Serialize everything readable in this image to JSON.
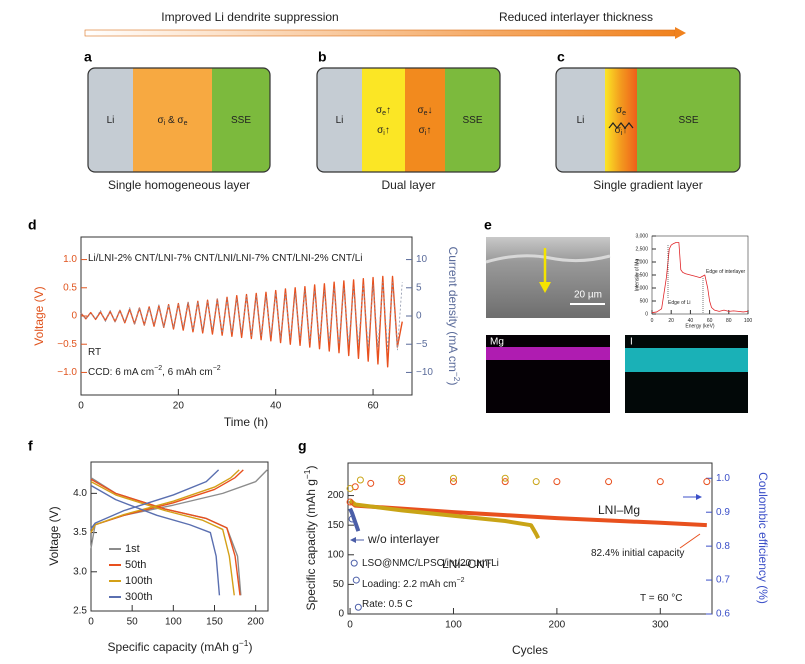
{
  "header": {
    "left": "Improved Li dendrite suppression",
    "right": "Reduced interlayer thickness"
  },
  "panel_labels": [
    "a",
    "b",
    "c",
    "d",
    "e",
    "f",
    "g"
  ],
  "diagrams": [
    {
      "caption": "Single homogeneous layer",
      "layers": [
        {
          "color": "#c5ccd3",
          "lines": [
            [
              "Li"
            ]
          ]
        },
        {
          "color": "#f7a941",
          "lines": [
            [
              "σ",
              "i",
              " & σ",
              "e"
            ]
          ]
        },
        {
          "color": "#7cba3d",
          "lines": [
            [
              "SSE"
            ]
          ]
        }
      ]
    },
    {
      "caption": "Dual layer",
      "layers": [
        {
          "color": "#c5ccd3",
          "lines": [
            [
              "Li"
            ]
          ]
        },
        {
          "color": "#fbe625",
          "lines": [
            [
              "σ",
              "e",
              "↑"
            ],
            [
              "σ",
              "i",
              "↑"
            ]
          ]
        },
        {
          "color": "#f28a1e",
          "lines": [
            [
              "σ",
              "e",
              "↓"
            ],
            [
              "σ",
              "i",
              "↑"
            ]
          ]
        },
        {
          "color": "#7cba3d",
          "lines": [
            [
              "SSE"
            ]
          ]
        }
      ]
    },
    {
      "caption": "Single gradient layer",
      "layers": [
        {
          "color": "#c5ccd3",
          "lines": [
            [
              "Li"
            ]
          ]
        },
        {
          "colors": [
            "#fbe625",
            "#f39a1e",
            "#ef5f1a"
          ],
          "lines": [
            [
              "σ",
              "e"
            ],
            [
              "σ",
              "i",
              "↑"
            ]
          ]
        },
        {
          "color": "#7cba3d",
          "lines": [
            [
              "SSE"
            ]
          ]
        }
      ]
    }
  ],
  "panel_e": {
    "scale_bar": "20 µm",
    "maps": [
      "Mg",
      "I"
    ]
  },
  "chart_data": [
    {
      "type": "line",
      "xlabel": "Time (h)",
      "ylabel": "Voltage (V)",
      "y2label": [
        "Current density (mA cm",
        "−2",
        ")"
      ],
      "ycolor": "#e0541e",
      "y2color": "#5a6b9a",
      "xlim": [
        0,
        68
      ],
      "ylim": [
        -1.4,
        1.4
      ],
      "y2lim": [
        -14,
        14
      ],
      "xticks": [
        0,
        20,
        40,
        60
      ],
      "yticks": [
        {
          "value": 1,
          "label": "1.0"
        },
        0.5,
        0,
        {
          "value": -0.5,
          "label": "−0.5"
        },
        {
          "value": -1,
          "label": "−1.0"
        }
      ],
      "y2ticks": [
        10,
        5,
        0,
        {
          "value": -5,
          "label": "−5"
        },
        {
          "value": -10,
          "label": "−10"
        }
      ],
      "annotations": [
        [
          "Li/LNI-2% CNT/LNI-7% CNT/LNI/LNI-7% CNT/LNI-2% CNT/Li"
        ],
        [
          "RT"
        ],
        [
          "CCD: 6 mA cm",
          "−2",
          ", 6 mAh cm",
          "−2"
        ]
      ],
      "x": [
        0,
        1,
        2,
        3,
        4,
        5,
        6,
        7,
        8,
        9,
        10,
        11,
        12,
        13,
        14,
        15,
        16,
        17,
        18,
        19,
        20,
        21,
        22,
        23,
        24,
        25,
        26,
        27,
        28,
        29,
        30,
        31,
        32,
        33,
        34,
        35,
        36,
        37,
        38,
        39,
        40,
        41,
        42,
        43,
        44,
        45,
        46,
        47,
        48,
        49,
        50,
        51,
        52,
        53,
        54,
        55,
        56,
        57,
        58,
        59,
        60,
        61,
        62,
        63,
        64,
        65,
        66
      ],
      "series": [
        {
          "color": "#e8501e",
          "values": [
            0.05,
            -0.05,
            0.06,
            -0.06,
            0.07,
            -0.08,
            0.08,
            -0.1,
            0.1,
            -0.12,
            0.12,
            -0.14,
            0.14,
            -0.16,
            0.16,
            -0.18,
            0.18,
            -0.2,
            0.2,
            -0.23,
            0.22,
            -0.25,
            0.24,
            -0.28,
            0.26,
            -0.3,
            0.28,
            -0.32,
            0.3,
            -0.34,
            0.33,
            -0.36,
            0.36,
            -0.38,
            0.38,
            -0.4,
            0.4,
            -0.42,
            0.42,
            -0.44,
            0.45,
            -0.47,
            0.48,
            -0.5,
            0.5,
            -0.52,
            0.52,
            -0.55,
            0.55,
            -0.58,
            0.57,
            -0.62,
            0.6,
            -0.65,
            0.62,
            -0.7,
            0.64,
            -0.75,
            0.66,
            -0.8,
            0.68,
            -0.85,
            0.7,
            -0.9,
            0.7,
            -0.55,
            -0.1
          ]
        },
        {
          "color": "#8a93a8",
          "axis": "y2",
          "dash": true,
          "values": [
            0.5,
            -0.5,
            0.5,
            -0.5,
            1,
            -1,
            1,
            -1,
            1,
            -1,
            1.5,
            -1.5,
            1.5,
            -1.5,
            1.5,
            -1.5,
            2,
            -2,
            2,
            -2,
            2,
            -2,
            2.5,
            -2.5,
            2.5,
            -2.5,
            2.5,
            -2.5,
            3,
            -3,
            3,
            -3,
            3,
            -3,
            3.5,
            -3.5,
            3.5,
            -3.5,
            3.5,
            -3.5,
            4,
            -4,
            4,
            -4,
            4,
            -4,
            4.5,
            -4.5,
            4.5,
            -4.5,
            4.5,
            -4.5,
            5,
            -5,
            5,
            -5,
            5,
            -5,
            5.5,
            -5.5,
            5.5,
            -5.5,
            6,
            -6,
            6,
            -6,
            6
          ]
        }
      ]
    },
    {
      "type": "line",
      "xlabel": "Energy (keV)",
      "ylabel": "Intensity of Mg",
      "xlim": [
        0,
        100
      ],
      "ylim": [
        0,
        3000
      ],
      "xticks": [
        0,
        20,
        40,
        60,
        80,
        100
      ],
      "yticks": [
        0,
        500,
        {
          "value": 1000,
          "label": "1,000"
        },
        {
          "value": 1500,
          "label": "1,500"
        },
        {
          "value": 2000,
          "label": "2,000"
        },
        {
          "value": 2500,
          "label": "2,500"
        },
        {
          "value": 3000,
          "label": "3,000"
        }
      ],
      "annotations": [
        [
          "Edge of Li"
        ],
        [
          "Edge of interlayer"
        ]
      ],
      "series": [
        {
          "color": "#e0262a",
          "x": [
            0,
            5,
            10,
            15,
            18,
            20,
            22,
            25,
            28,
            30,
            32,
            35,
            40,
            45,
            50,
            55,
            58,
            60,
            62,
            65,
            70,
            75,
            80,
            85,
            90,
            95,
            100
          ],
          "values": [
            50,
            80,
            200,
            1400,
            2500,
            2650,
            2700,
            2750,
            2750,
            1700,
            1600,
            1550,
            1500,
            1450,
            1400,
            1500,
            1000,
            500,
            250,
            150,
            100,
            150,
            100,
            120,
            100,
            80,
            100
          ]
        }
      ]
    },
    {
      "type": "line",
      "xlabel": [
        "Specific capacity (mAh g",
        "−1",
        ")"
      ],
      "ylabel": "Voltage (V)",
      "xlim": [
        0,
        215
      ],
      "ylim": [
        2.5,
        4.4
      ],
      "xticks": [
        0,
        50,
        100,
        150,
        200
      ],
      "yticks": [
        2.5,
        {
          "value": 3,
          "label": "3.0"
        },
        3.5,
        {
          "value": 4,
          "label": "4.0"
        }
      ],
      "legend": "lower left",
      "series": [
        {
          "name": "1st",
          "color": "#8c8c8c",
          "x": [
            0,
            5,
            40,
            100,
            160,
            200,
            214,
            null,
            0,
            30,
            90,
            140,
            165,
            178,
            182
          ],
          "values": [
            3.3,
            3.6,
            3.72,
            3.85,
            4.0,
            4.15,
            4.3,
            null,
            4.2,
            4.0,
            3.8,
            3.68,
            3.56,
            3.2,
            2.7
          ]
        },
        {
          "name": "50th",
          "color": "#e8501e",
          "x": [
            0,
            5,
            40,
            100,
            150,
            175,
            185,
            null,
            0,
            30,
            90,
            140,
            165,
            175,
            181
          ],
          "values": [
            3.5,
            3.6,
            3.72,
            3.88,
            4.05,
            4.2,
            4.3,
            null,
            4.18,
            4.0,
            3.8,
            3.68,
            3.56,
            3.2,
            2.7
          ]
        },
        {
          "name": "100th",
          "color": "#d4a017",
          "x": [
            0,
            5,
            40,
            100,
            150,
            170,
            180,
            null,
            0,
            30,
            90,
            135,
            160,
            168,
            174
          ],
          "values": [
            3.5,
            3.6,
            3.73,
            3.9,
            4.08,
            4.2,
            4.3,
            null,
            4.15,
            3.98,
            3.78,
            3.66,
            3.54,
            3.2,
            2.7
          ]
        },
        {
          "name": "300th",
          "color": "#5a6fb0",
          "x": [
            0,
            5,
            40,
            100,
            140,
            155,
            null,
            0,
            30,
            80,
            120,
            145,
            152,
            156
          ],
          "values": [
            3.55,
            3.62,
            3.78,
            3.98,
            4.15,
            4.3,
            null,
            4.1,
            3.92,
            3.72,
            3.6,
            3.5,
            3.2,
            2.7
          ]
        }
      ]
    },
    {
      "type": "line",
      "xlabel": "Cycles",
      "ylabel": [
        "Specific capacity (mAh g",
        "−1",
        ")"
      ],
      "y2label": "Coulombic efficiency (%)",
      "y2color": "#3c50c8",
      "xlim": [
        -2,
        350
      ],
      "ylim": [
        0,
        255
      ],
      "y2lim": [
        0.6,
        1.045
      ],
      "xticks": [
        0,
        100,
        200,
        300
      ],
      "yticks": [
        0,
        50,
        100,
        150,
        200
      ],
      "y2ticks": [
        0.6,
        0.7,
        0.8,
        0.9,
        {
          "value": 1,
          "label": "1.0"
        }
      ],
      "annotations": [
        [
          "82.4% initial capacity"
        ],
        [
          "LSO@NMC/LPSC/int/20 um-Li"
        ],
        [
          "Loading: 2.2 mAh cm",
          "−2"
        ],
        [
          "Rate: 0.5 C"
        ],
        [
          "T = 60 °C"
        ]
      ],
      "series": [
        {
          "name": "LNI–Mg",
          "color": "#e8501e",
          "x": [
            0,
            5,
            50,
            100,
            150,
            200,
            250,
            300,
            345
          ],
          "values": [
            190,
            183,
            178,
            172,
            167,
            162,
            158,
            154,
            150
          ]
        },
        {
          "name": "LNI–CNT",
          "color": "#c9a416",
          "x": [
            0,
            5,
            50,
            100,
            150,
            175,
            180,
            182
          ],
          "values": [
            192,
            185,
            175,
            166,
            157,
            150,
            135,
            128
          ]
        },
        {
          "name": "w/o interlayer",
          "color": "#4b5ea8",
          "x": [
            0,
            2,
            4,
            6,
            8
          ],
          "values": [
            178,
            170,
            160,
            150,
            140
          ]
        },
        {
          "color": "#e8501e",
          "axis": "y2",
          "style": "scatter",
          "x": [
            0,
            5,
            20,
            50,
            100,
            150,
            200,
            250,
            300,
            345
          ],
          "values": [
            0.93,
            0.975,
            0.985,
            0.99,
            0.99,
            0.99,
            0.99,
            0.99,
            0.99,
            0.99
          ]
        },
        {
          "color": "#c9a416",
          "axis": "y2",
          "style": "scatter",
          "x": [
            0,
            10,
            50,
            100,
            150,
            180
          ],
          "values": [
            0.97,
            0.995,
            1.0,
            1.0,
            1.0,
            0.99
          ]
        },
        {
          "color": "#4b5ea8",
          "axis": "y2",
          "style": "scatter",
          "x": [
            2,
            4,
            6,
            8
          ],
          "values": [
            0.88,
            0.75,
            0.7,
            0.62
          ]
        }
      ]
    }
  ]
}
